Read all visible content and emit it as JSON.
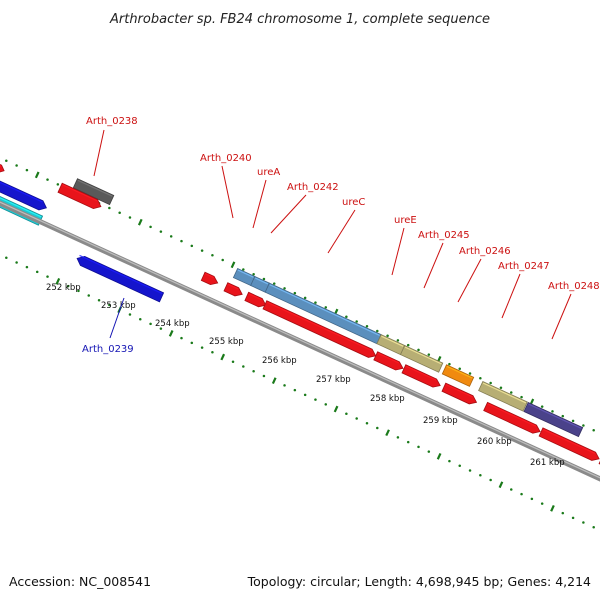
{
  "title": "Arthrobacter sp. FB24 chromosome 1, complete sequence",
  "footer": {
    "accession": "Accession: NC_008541",
    "summary": "Topology: circular; Length: 4,698,945 bp; Genes: 4,214"
  },
  "colors": {
    "backbone": "#8a8a8a",
    "tick_marks": "#1a7a1a",
    "cds": "#e8141b",
    "cds_other_strand": "#1515cc",
    "label_forward": "#cc1111",
    "label_reverse": "#1414b4",
    "feature_gray": "#5a5a5a",
    "feature_cyan": "#1ec8d2",
    "feature_steelblue": "#5b8fbd",
    "feature_khaki": "#b7ae74",
    "feature_orange": "#f08a10",
    "feature_slate": "#4a428a"
  },
  "axis_labels": [
    "252 kbp",
    "253 kbp",
    "254 kbp",
    "255 kbp",
    "256 kbp",
    "257 kbp",
    "258 kbp",
    "259 kbp",
    "260 kbp",
    "261 kbp"
  ],
  "gene_labels": [
    {
      "name": "Arth_0238",
      "strand": "forward"
    },
    {
      "name": "Arth_0239",
      "strand": "reverse"
    },
    {
      "name": "Arth_0240",
      "strand": "forward"
    },
    {
      "name": "ureA",
      "strand": "forward"
    },
    {
      "name": "Arth_0242",
      "strand": "forward"
    },
    {
      "name": "ureC",
      "strand": "forward"
    },
    {
      "name": "ureE",
      "strand": "forward"
    },
    {
      "name": "Arth_0245",
      "strand": "forward"
    },
    {
      "name": "Arth_0246",
      "strand": "forward"
    },
    {
      "name": "Arth_0247",
      "strand": "forward"
    },
    {
      "name": "Arth_0248",
      "strand": "forward"
    }
  ]
}
